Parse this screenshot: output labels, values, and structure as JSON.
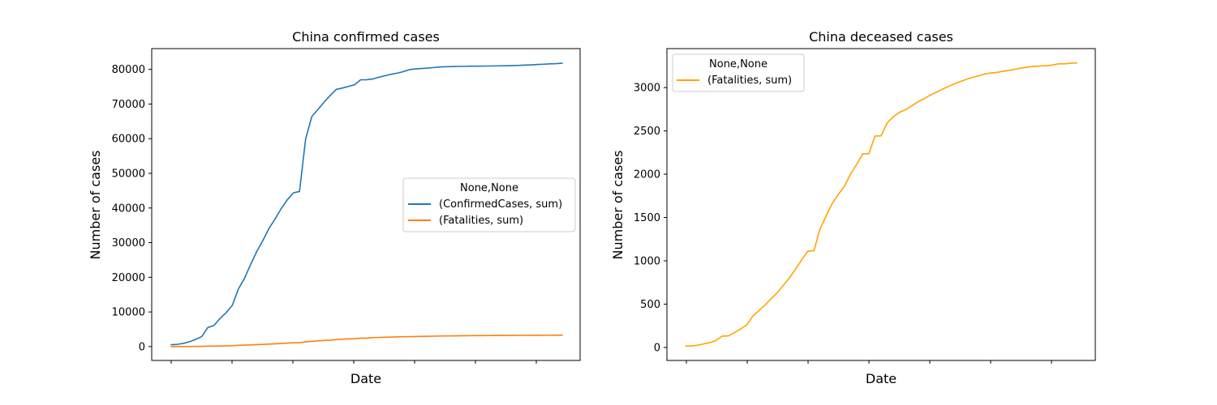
{
  "colors": {
    "blue": "#1f77b4",
    "orange": "#ff7f0e",
    "amber": "#ffa500"
  },
  "chart_data": [
    {
      "type": "line",
      "title": "China confirmed cases",
      "xlabel": "Date",
      "ylabel": "Number of cases",
      "ylim": [
        -4000,
        86000
      ],
      "yticks": [
        0,
        10000,
        20000,
        30000,
        40000,
        50000,
        60000,
        70000,
        80000
      ],
      "x_tick_count": 7,
      "grid": false,
      "legend": {
        "title": "None,None",
        "position": "center-right"
      },
      "series": [
        {
          "name": "(ConfirmedCases, sum)",
          "color": "#1f77b4",
          "values": [
            548,
            643,
            920,
            1406,
            2075,
            2877,
            5509,
            6087,
            8141,
            9802,
            11891,
            16630,
            19716,
            23707,
            27440,
            30587,
            34110,
            36814,
            39829,
            42354,
            44386,
            44759,
            59895,
            66358,
            68413,
            70513,
            72434,
            74211,
            74619,
            75077,
            75550,
            77001,
            77022,
            77241,
            77754,
            78166,
            78600,
            78928,
            79356,
            79932,
            80136,
            80261,
            80386,
            80537,
            80690,
            80770,
            80823,
            80860,
            80887,
            80921,
            80932,
            80945,
            80977,
            81003,
            81033,
            81058,
            81102,
            81156,
            81250,
            81305,
            81435,
            81498,
            81591,
            81661,
            81782
          ]
        },
        {
          "name": "(Fatalities, sum)",
          "color": "#ff7f0e",
          "values": [
            17,
            18,
            26,
            42,
            56,
            82,
            131,
            133,
            171,
            213,
            259,
            361,
            425,
            490,
            562,
            632,
            717,
            804,
            904,
            1011,
            1111,
            1116,
            1368,
            1520,
            1662,
            1765,
            1863,
            2002,
            2114,
            2236,
            2236,
            2441,
            2443,
            2593,
            2663,
            2715,
            2744,
            2788,
            2835,
            2870,
            2912,
            2945,
            2981,
            3013,
            3042,
            3070,
            3097,
            3119,
            3136,
            3158,
            3169,
            3176,
            3189,
            3199,
            3213,
            3226,
            3237,
            3245,
            3249,
            3253,
            3259,
            3274,
            3274,
            3281,
            3285
          ]
        }
      ]
    },
    {
      "type": "line",
      "title": "China deceased cases",
      "xlabel": "Date",
      "ylabel": "Number of cases",
      "ylim": [
        -150,
        3450
      ],
      "yticks": [
        0,
        500,
        1000,
        1500,
        2000,
        2500,
        3000
      ],
      "x_tick_count": 7,
      "grid": false,
      "legend": {
        "title": "None,None",
        "position": "top-left"
      },
      "series": [
        {
          "name": "(Fatalities, sum)",
          "color": "#ffa500",
          "values": [
            17,
            18,
            26,
            42,
            56,
            82,
            131,
            133,
            171,
            213,
            259,
            361,
            425,
            490,
            562,
            632,
            717,
            804,
            904,
            1011,
            1111,
            1116,
            1368,
            1520,
            1662,
            1765,
            1863,
            2002,
            2114,
            2236,
            2236,
            2441,
            2443,
            2593,
            2663,
            2715,
            2744,
            2788,
            2835,
            2870,
            2912,
            2945,
            2981,
            3013,
            3042,
            3070,
            3097,
            3119,
            3136,
            3158,
            3169,
            3176,
            3189,
            3199,
            3213,
            3226,
            3237,
            3245,
            3249,
            3253,
            3259,
            3274,
            3274,
            3281,
            3285
          ]
        }
      ]
    }
  ]
}
